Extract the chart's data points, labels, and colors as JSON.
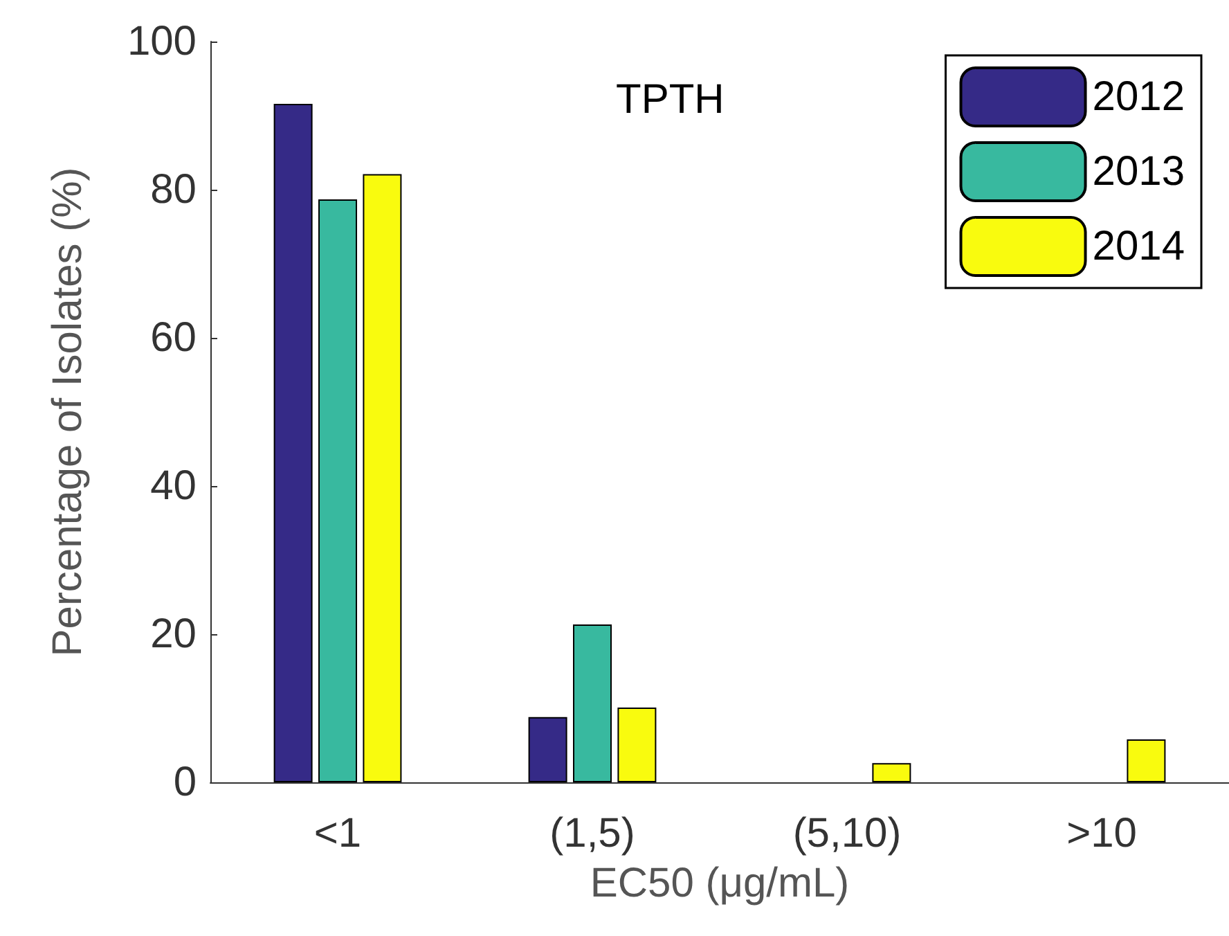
{
  "chart_data": {
    "type": "bar",
    "title": "TPTH",
    "xlabel": "EC50 (μg/mL)",
    "ylabel": "Percentage of Isolates (%)",
    "categories": [
      "<1",
      "(1,5)",
      "(5,10)",
      ">10"
    ],
    "series": [
      {
        "name": "2012",
        "color": "#352a87",
        "values": [
          91.6,
          8.8,
          0,
          0
        ]
      },
      {
        "name": "2013",
        "color": "#38b99f",
        "values": [
          78.7,
          21.3,
          0,
          0
        ]
      },
      {
        "name": "2014",
        "color": "#f9fb0e",
        "values": [
          82.1,
          10.1,
          2.6,
          5.8
        ]
      }
    ],
    "ylim": [
      0,
      100
    ],
    "yticks": [
      0,
      20,
      40,
      60,
      80,
      100
    ],
    "grid": false,
    "legend": "top right"
  }
}
